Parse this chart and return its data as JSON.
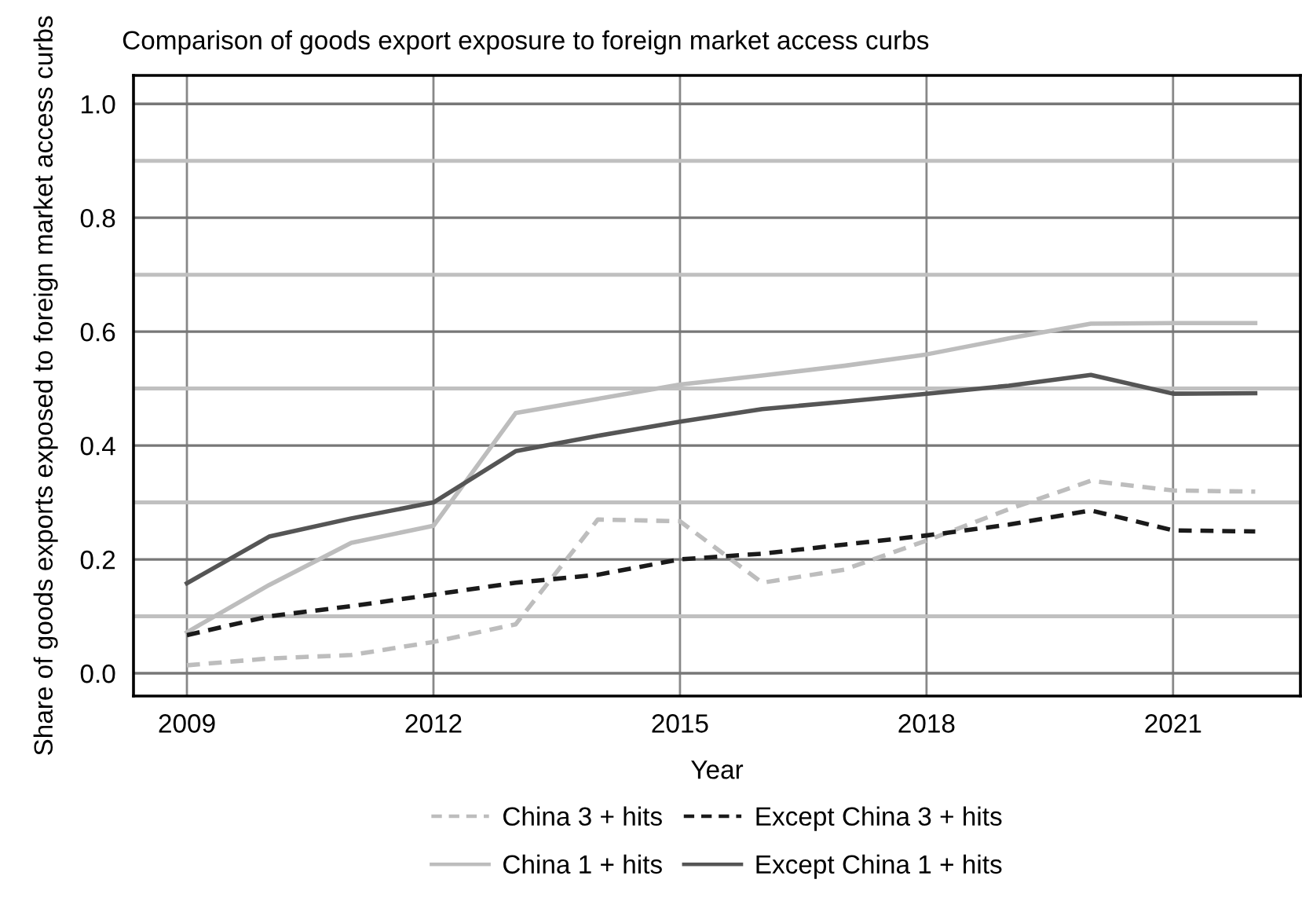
{
  "chart_data": {
    "type": "line",
    "title": "Comparison of goods export exposure to foreign market access curbs",
    "xlabel": "Year",
    "ylabel": "Share of goods exports exposed to foreign market access curbs",
    "x": [
      2009,
      2010,
      2011,
      2012,
      2013,
      2014,
      2015,
      2016,
      2017,
      2018,
      2019,
      2020,
      2021,
      2022
    ],
    "series": [
      {
        "name": "China 3 + hits",
        "color": "#bdbdbd",
        "line_style": "dashed",
        "values": [
          0.014,
          0.026,
          0.032,
          0.055,
          0.086,
          0.27,
          0.267,
          0.159,
          0.182,
          0.233,
          0.288,
          0.338,
          0.321,
          0.319
        ]
      },
      {
        "name": "China 1 + hits",
        "color": "#bdbdbd",
        "line_style": "solid",
        "values": [
          0.072,
          0.155,
          0.229,
          0.259,
          0.457,
          0.482,
          0.507,
          0.523,
          0.54,
          0.56,
          0.588,
          0.614,
          0.615,
          0.615
        ]
      },
      {
        "name": "Except China 3 + hits",
        "color": "#1a1a1a",
        "line_style": "dashed",
        "values": [
          0.067,
          0.1,
          0.118,
          0.138,
          0.159,
          0.173,
          0.2,
          0.21,
          0.226,
          0.242,
          0.261,
          0.286,
          0.251,
          0.249
        ]
      },
      {
        "name": "Except China 1 + hits",
        "color": "#555555",
        "line_style": "solid",
        "values": [
          0.158,
          0.24,
          0.272,
          0.3,
          0.39,
          0.417,
          0.442,
          0.464,
          0.477,
          0.491,
          0.505,
          0.524,
          0.491,
          0.492
        ]
      }
    ],
    "xlim": [
      2008.35,
      2022.55
    ],
    "xticks": [
      2009,
      2012,
      2015,
      2018,
      2021
    ],
    "ylim": [
      -0.04,
      1.05
    ],
    "yticks": [
      {
        "value": 0.0,
        "label": "0.0"
      },
      {
        "value": 0.1,
        "label": null
      },
      {
        "value": 0.2,
        "label": "0.2"
      },
      {
        "value": 0.3,
        "label": null
      },
      {
        "value": 0.4,
        "label": "0.4"
      },
      {
        "value": 0.5,
        "label": null
      },
      {
        "value": 0.6,
        "label": "0.6"
      },
      {
        "value": 0.7,
        "label": null
      },
      {
        "value": 0.8,
        "label": "0.8"
      },
      {
        "value": 0.9,
        "label": null
      },
      {
        "value": 1.0,
        "label": "1.0"
      }
    ],
    "grid": true,
    "legend": "bottom",
    "marker": "none"
  }
}
